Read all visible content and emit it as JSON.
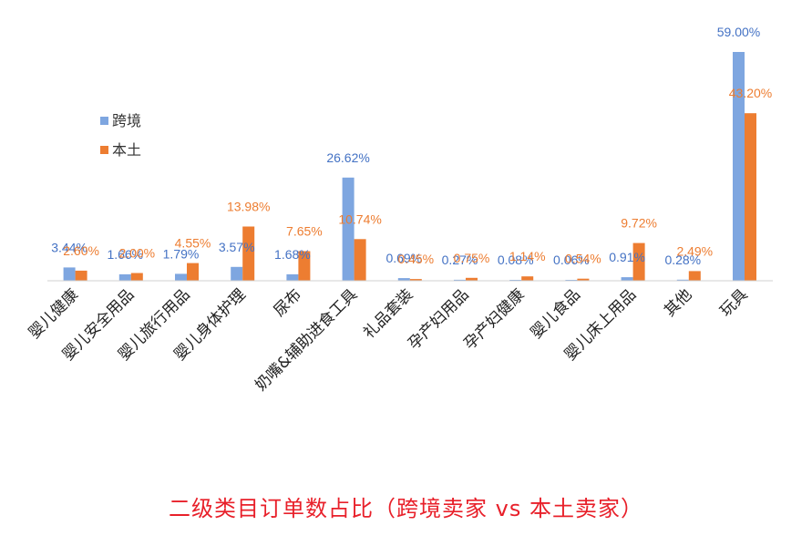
{
  "chart_data": {
    "type": "bar",
    "title": "二级类目订单数占比（跨境卖家 vs 本土卖家）",
    "categories": [
      "婴儿健康",
      "婴儿安全用品",
      "婴儿旅行用品",
      "婴儿身体护理",
      "尿布",
      "奶嘴&辅助进食工具",
      "礼品套装",
      "孕产妇用品",
      "孕产妇健康",
      "婴儿食品",
      "婴儿床上用品",
      "其他",
      "玩具"
    ],
    "series": [
      {
        "name": "跨境",
        "color": "#7ea6e0",
        "label_color": "#4472c4",
        "values": [
          3.44,
          1.66,
          1.79,
          3.57,
          1.68,
          26.62,
          0.69,
          0.27,
          0.08,
          0.06,
          0.91,
          0.28,
          59.0
        ],
        "labels": [
          "3.44%",
          "1.66%",
          "1.79%",
          "3.57%",
          "1.68%",
          "26.62%",
          "0.69%",
          "0.27%",
          "0.08%",
          "0.06%",
          "0.91%",
          "0.28%",
          "59.00%"
        ]
      },
      {
        "name": "本土",
        "color": "#ed7d31",
        "label_color": "#ed7d31",
        "values": [
          2.6,
          2.0,
          4.55,
          13.98,
          7.65,
          10.74,
          0.45,
          0.75,
          1.14,
          0.54,
          9.72,
          2.49,
          43.2
        ],
        "labels": [
          "2.60%",
          "2.00%",
          "4.55%",
          "13.98%",
          "7.65%",
          "10.74%",
          "0.45%",
          "0.75%",
          "1.14%",
          "0.54%",
          "9.72%",
          "2.49%",
          "43.20%"
        ]
      }
    ],
    "ylim": [
      0,
      60
    ],
    "grid": false,
    "legend": "left",
    "xlabel": "",
    "ylabel": ""
  }
}
